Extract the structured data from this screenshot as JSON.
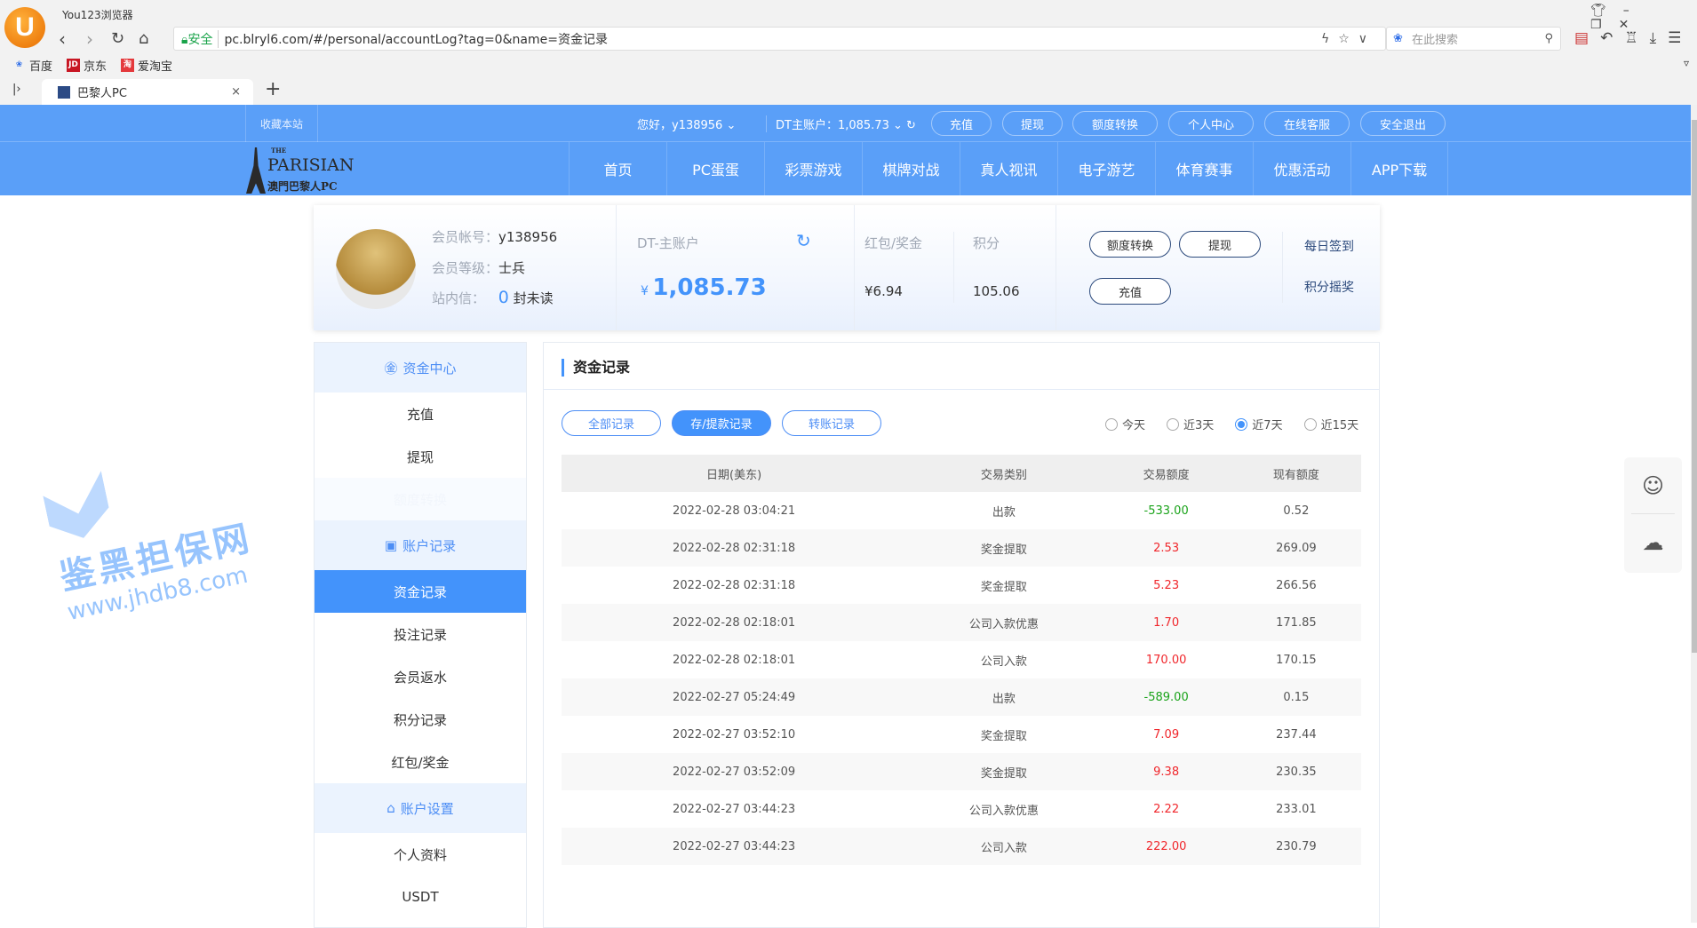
{
  "browser": {
    "name": "You123浏览器",
    "logo_letter": "U",
    "safe_label": "安全",
    "url": "pc.blryl6.com/#/personal/accountLog?tag=0&name=资金记录",
    "search_placeholder": "在此搜索",
    "bookmarks": [
      {
        "label": "百度",
        "icon": "baidu-icon",
        "color": "#2f6ee8"
      },
      {
        "label": "京东",
        "icon": "jd-icon",
        "color": "#c81623"
      },
      {
        "label": "爱淘宝",
        "icon": "taobao-icon",
        "color": "#e4393c"
      }
    ],
    "tab_title": "巴黎人PC"
  },
  "topbar": {
    "bookmark_site": "收藏本站",
    "greeting": "您好，y138956",
    "main_account": "DT主账户：1,085.73",
    "buttons": [
      "充值",
      "提现",
      "额度转换",
      "个人中心",
      "在线客服",
      "安全退出"
    ]
  },
  "logo": {
    "line1": "THE",
    "line2": "PARISIAN",
    "line3": "澳門巴黎人PC"
  },
  "nav": [
    "首页",
    "PC蛋蛋",
    "彩票游戏",
    "棋牌对战",
    "真人视讯",
    "电子游艺",
    "体育赛事",
    "优惠活动",
    "APP下载"
  ],
  "profile": {
    "account_label": "会员帐号：",
    "account": "y138956",
    "level_label": "会员等级：",
    "level": "士兵",
    "mail_label": "站内信：",
    "mail_count": "0",
    "mail_unit": "封未读",
    "main_account_label": "DT-主账户",
    "currency": "¥",
    "balance": "1,085.73",
    "bonus_label": "红包/奖金",
    "bonus": "¥6.94",
    "points_label": "积分",
    "points": "105.06",
    "btn_transfer": "额度转换",
    "btn_withdraw": "提现",
    "btn_deposit": "充值",
    "daily_sign": "每日签到",
    "points_lottery": "积分摇奖"
  },
  "sidebar": {
    "sections": [
      {
        "title": "资金中心",
        "icon": "yuan-circle-icon",
        "items": [
          "充值",
          "提现",
          "额度转换"
        ]
      },
      {
        "title": "账户记录",
        "icon": "record-icon",
        "items": [
          "资金记录",
          "投注记录",
          "会员返水",
          "积分记录",
          "红包/奖金"
        ]
      },
      {
        "title": "账户设置",
        "icon": "user-card-icon",
        "items": [
          "个人资料",
          "USDT"
        ]
      }
    ],
    "active": "资金记录"
  },
  "main": {
    "title": "资金记录",
    "filters": [
      "全部记录",
      "存/提款记录",
      "转账记录"
    ],
    "active_filter": "存/提款记录",
    "ranges": [
      "今天",
      "近3天",
      "近7天",
      "近15天"
    ],
    "active_range": "近7天",
    "columns": [
      "日期(美东)",
      "交易类别",
      "交易额度",
      "现有额度"
    ],
    "rows": [
      [
        "2022-02-28 03:04:21",
        "出款",
        "-533.00",
        "0.52"
      ],
      [
        "2022-02-28 02:31:18",
        "奖金提取",
        "2.53",
        "269.09"
      ],
      [
        "2022-02-28 02:31:18",
        "奖金提取",
        "5.23",
        "266.56"
      ],
      [
        "2022-02-28 02:18:01",
        "公司入款优惠",
        "1.70",
        "171.85"
      ],
      [
        "2022-02-28 02:18:01",
        "公司入款",
        "170.00",
        "170.15"
      ],
      [
        "2022-02-27 05:24:49",
        "出款",
        "-589.00",
        "0.15"
      ],
      [
        "2022-02-27 03:52:10",
        "奖金提取",
        "7.09",
        "237.44"
      ],
      [
        "2022-02-27 03:52:09",
        "奖金提取",
        "9.38",
        "230.35"
      ],
      [
        "2022-02-27 03:44:23",
        "公司入款优惠",
        "2.22",
        "233.01"
      ],
      [
        "2022-02-27 03:44:23",
        "公司入款",
        "222.00",
        "230.79"
      ]
    ]
  },
  "watermark": {
    "line1": "鉴黑担保网",
    "line2": "www.jhdb8.com"
  },
  "colors": {
    "brand": "#5a9ff8",
    "accent": "#4393fb",
    "negative": "#1aa31a",
    "positive": "#f0262b"
  }
}
